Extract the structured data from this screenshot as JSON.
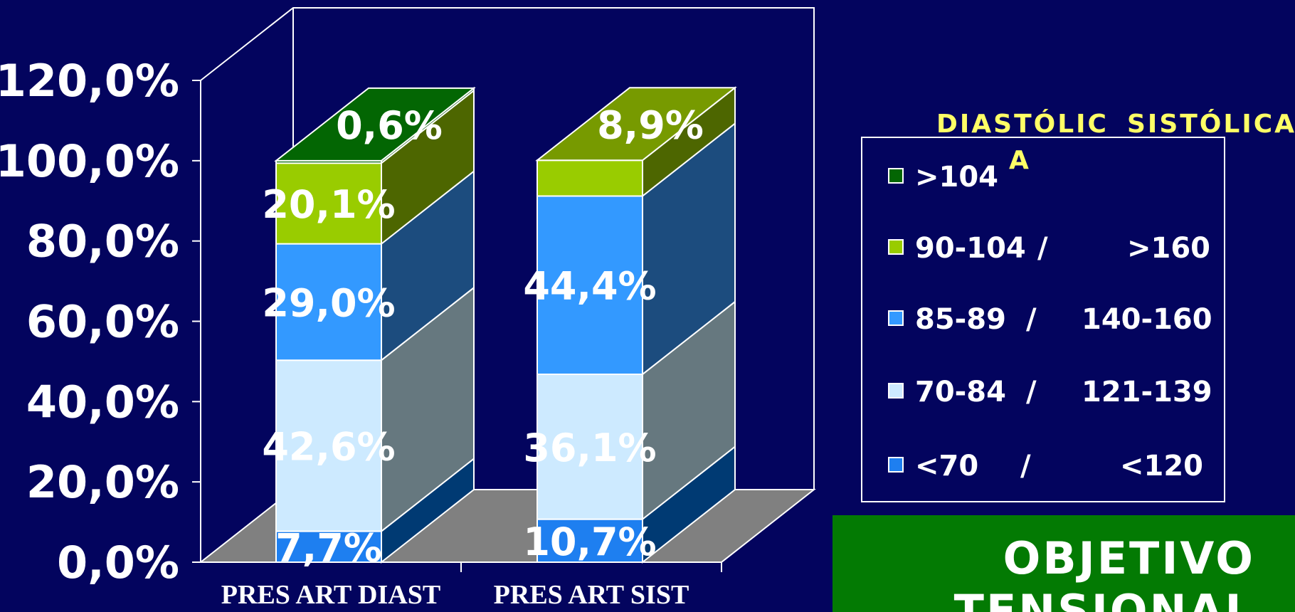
{
  "chart_data": {
    "type": "bar",
    "stacked": true,
    "three_d": true,
    "categories": [
      "PRES  ART  DIAST",
      "PRES  ART  SIST"
    ],
    "ylim": [
      0,
      120
    ],
    "yticks": [
      "0,0%",
      "20,0%",
      "40,0%",
      "60,0%",
      "80,0%",
      "100,0%",
      "120,0%"
    ],
    "series": [
      {
        "name": "<70",
        "values": [
          7.7,
          10.7
        ],
        "labels": [
          "7,7%",
          "10,7%"
        ],
        "color": "#1e7ff0",
        "side": "#003a73"
      },
      {
        "name": "70-84",
        "values": [
          42.6,
          36.1
        ],
        "labels": [
          "42,6%",
          "36,1%"
        ],
        "color": "#cdeaff",
        "side": "#66787f"
      },
      {
        "name": "85-89",
        "values": [
          29.0,
          44.4
        ],
        "labels": [
          "29,0%",
          "44,4%"
        ],
        "color": "#3399ff",
        "side": "#1c4c7e"
      },
      {
        "name": "90-104",
        "values": [
          20.1,
          8.9
        ],
        "labels": [
          "20,1%",
          ""
        ],
        "color": "#99cc00",
        "side": "#4d6600"
      },
      {
        "name": ">104",
        "values": [
          0.6,
          0
        ],
        "labels": [
          "",
          ""
        ],
        "color": "#036603",
        "side": "#024d02"
      }
    ],
    "top_labels": [
      "0,6%",
      "8,9%"
    ],
    "top_colors": [
      "#036603",
      "#779a00"
    ],
    "grid": false,
    "floor_color": "#808080",
    "legend_position": "right"
  },
  "legend": {
    "header_diastolic": "DIASTÓLIC",
    "header_diastolic_wrap": "A",
    "header_sistolic": "SISTÓLICA",
    "items": [
      {
        "diastolic": ">104",
        "slash": "",
        "sistolic": "",
        "color": "#036603"
      },
      {
        "diastolic": "90-104",
        "slash": "/",
        "sistolic": ">160",
        "color": "#99cc00"
      },
      {
        "diastolic": "85-89",
        "slash": "/",
        "sistolic": "140-160",
        "color": "#3399ff"
      },
      {
        "diastolic": "70-84",
        "slash": "/",
        "sistolic": "121-139",
        "color": "#cdeaff"
      },
      {
        "diastolic": "<70",
        "slash": "/",
        "sistolic": "<120",
        "color": "#1e7ff0"
      }
    ]
  },
  "banner": {
    "line1": "OBJETIVO",
    "line2": "TENSIONAL",
    "color": "#037a03"
  },
  "colors": {
    "background": "#03045e",
    "axis": "#ffffff",
    "legend_header": "#ffff66"
  }
}
